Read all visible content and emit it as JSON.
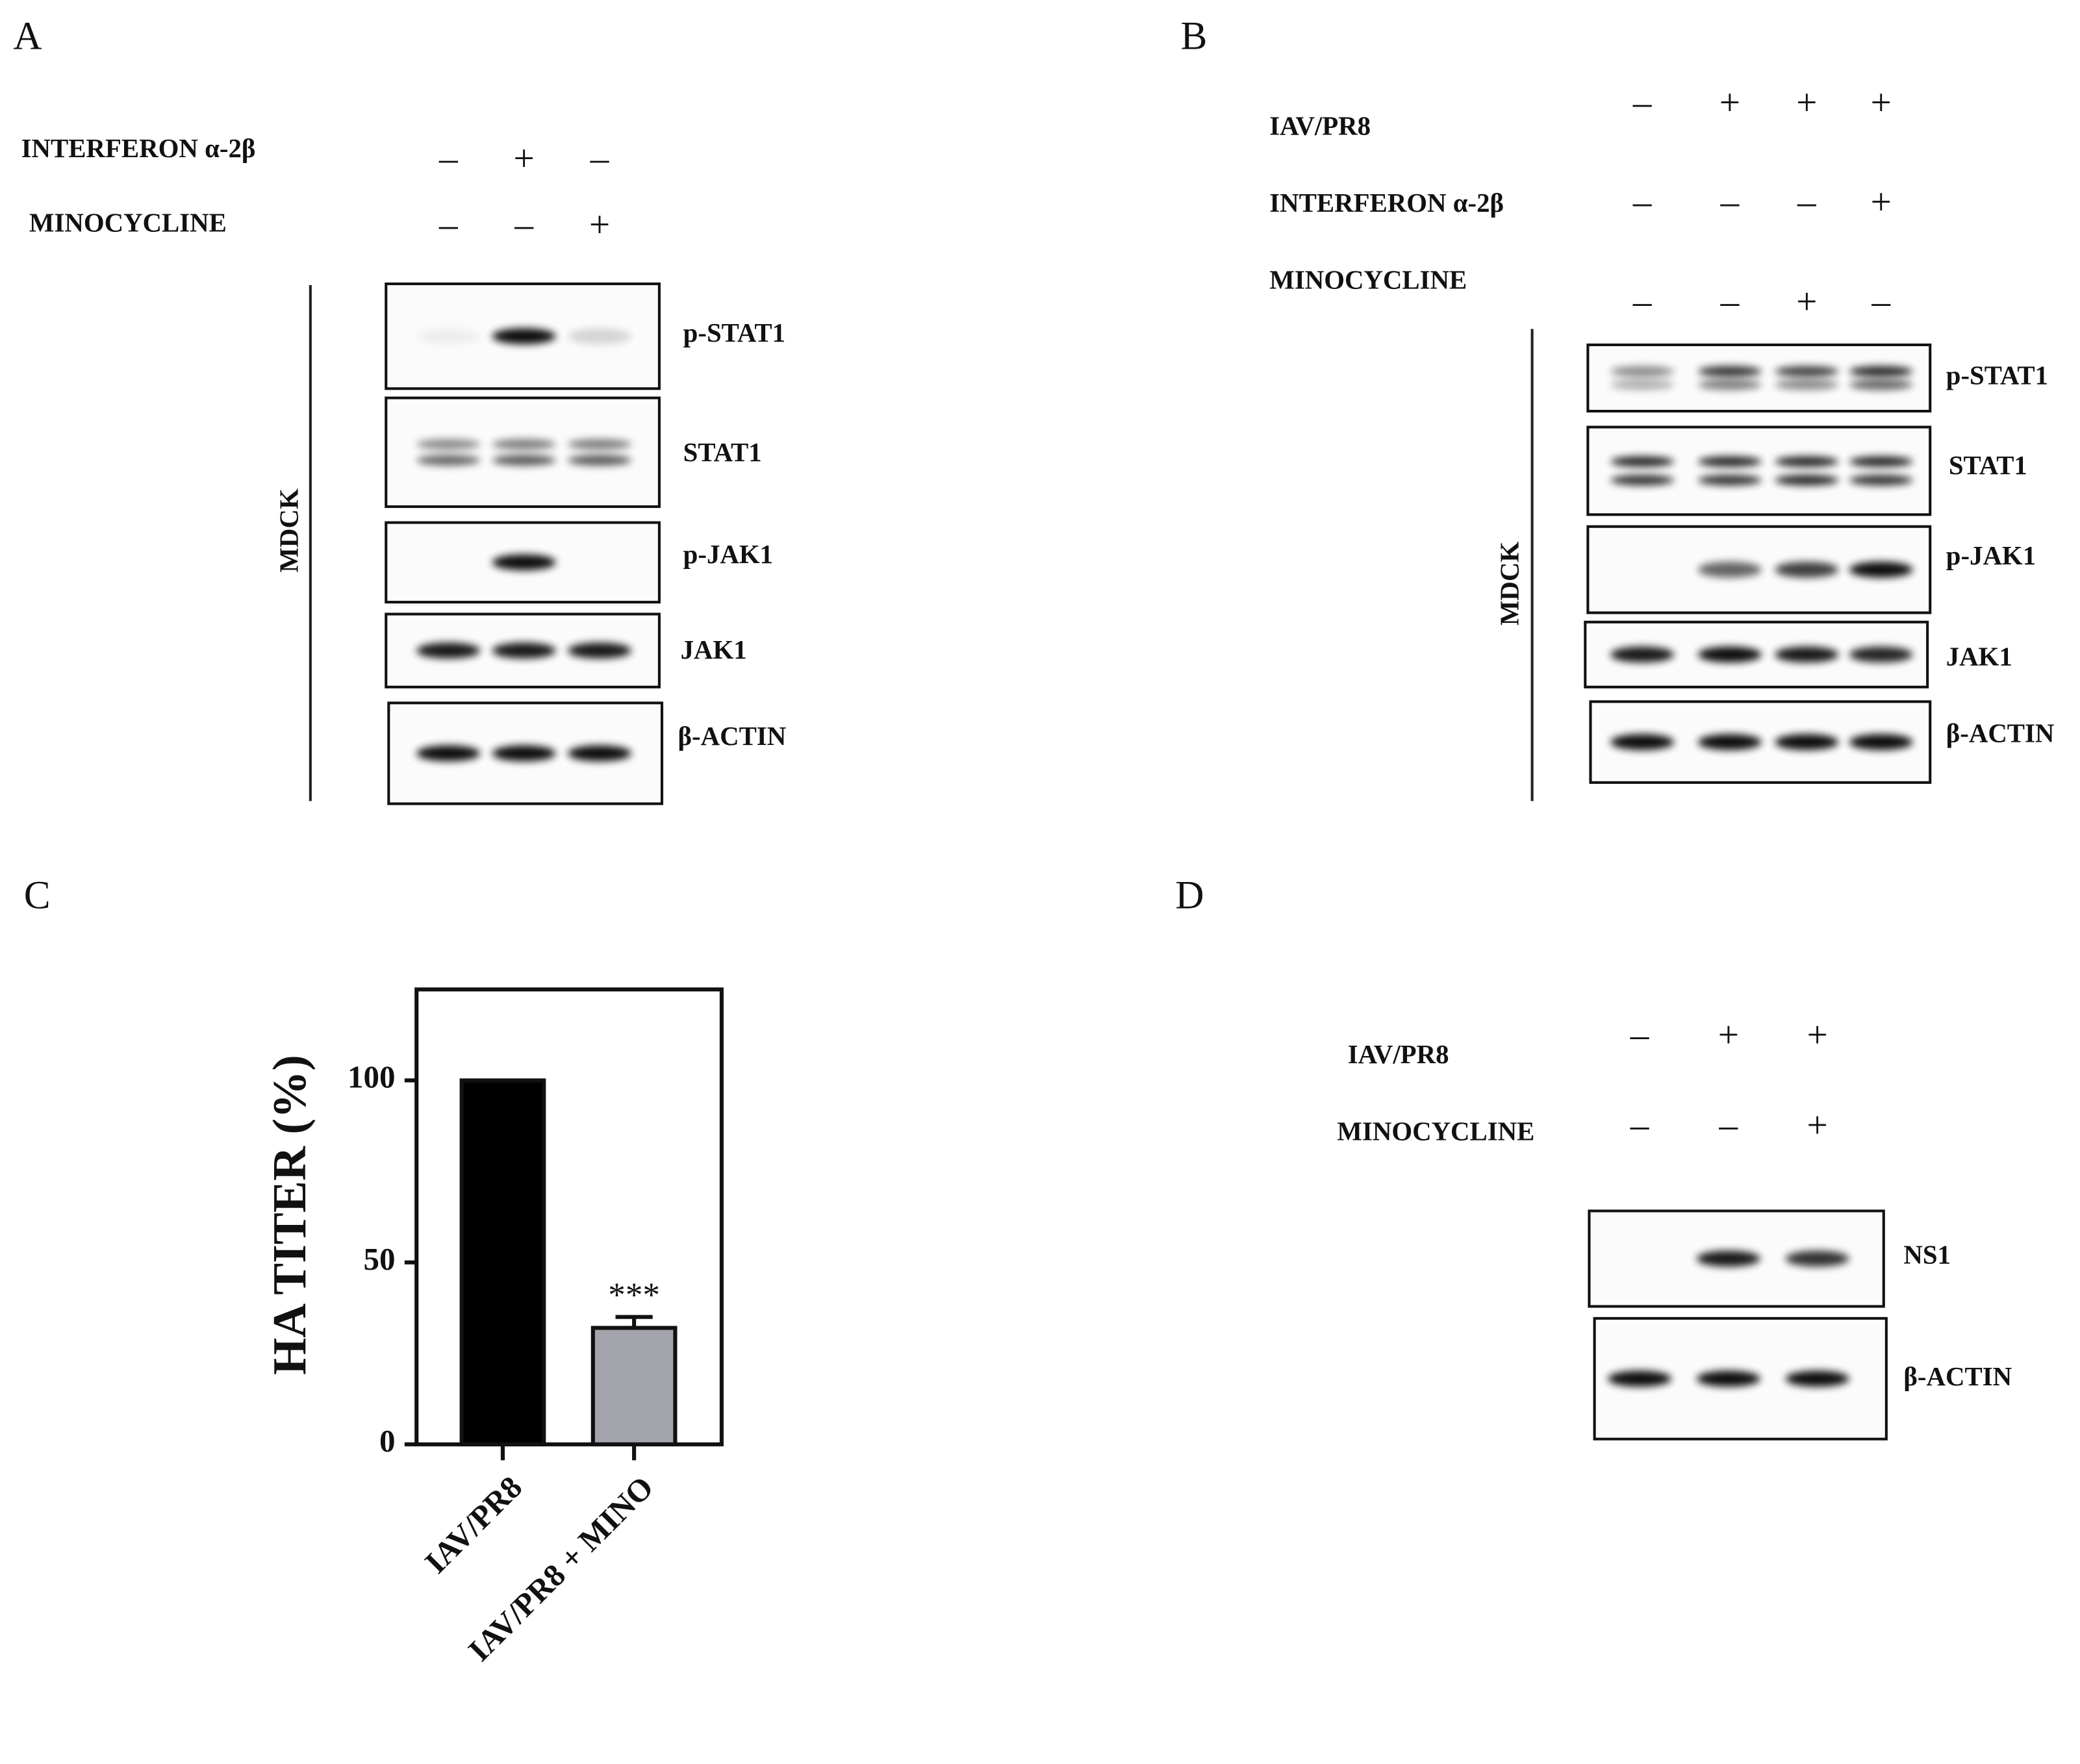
{
  "figure": {
    "A": {
      "label": "A",
      "treatments": [
        {
          "name": "INTERFERON α-2β",
          "signs": [
            "–",
            "+",
            "–"
          ]
        },
        {
          "name": "MINOCYCLINE",
          "signs": [
            "–",
            "–",
            "+"
          ]
        }
      ],
      "cell_line": "MDCK",
      "blots": [
        "p-STAT1",
        "STAT1",
        "p-JAK1",
        "JAK1",
        "β-ACTIN"
      ]
    },
    "B": {
      "label": "B",
      "treatments": [
        {
          "name": "IAV/PR8",
          "signs": [
            "–",
            "+",
            "+",
            "+"
          ]
        },
        {
          "name": "INTERFERON α-2β",
          "signs": [
            "–",
            "–",
            "–",
            "+"
          ]
        },
        {
          "name": "MINOCYCLINE",
          "signs": [
            "–",
            "–",
            "+",
            "–"
          ]
        }
      ],
      "cell_line": "MDCK",
      "blots": [
        "p-STAT1",
        "STAT1",
        "p-JAK1",
        "JAK1",
        "β-ACTIN"
      ]
    },
    "D": {
      "label": "D",
      "treatments": [
        {
          "name": "IAV/PR8",
          "signs": [
            "–",
            "+",
            "+"
          ]
        },
        {
          "name": "MINOCYCLINE",
          "signs": [
            "–",
            "–",
            "+"
          ]
        }
      ],
      "blots": [
        "NS1",
        "β-ACTIN"
      ]
    }
  },
  "chart_data": {
    "type": "bar",
    "panel_label": "C",
    "ylabel": "HA TITER (%)",
    "categories": [
      "IAV/PR8",
      "IAV/PR8 + MINO"
    ],
    "values": [
      100,
      32
    ],
    "errors": [
      null,
      3
    ],
    "significance": [
      null,
      "***"
    ],
    "colors": [
      "#000000",
      "#a3a3ab"
    ],
    "ylim": [
      0,
      125
    ],
    "yticks": [
      0,
      50,
      100
    ],
    "grid": false
  }
}
